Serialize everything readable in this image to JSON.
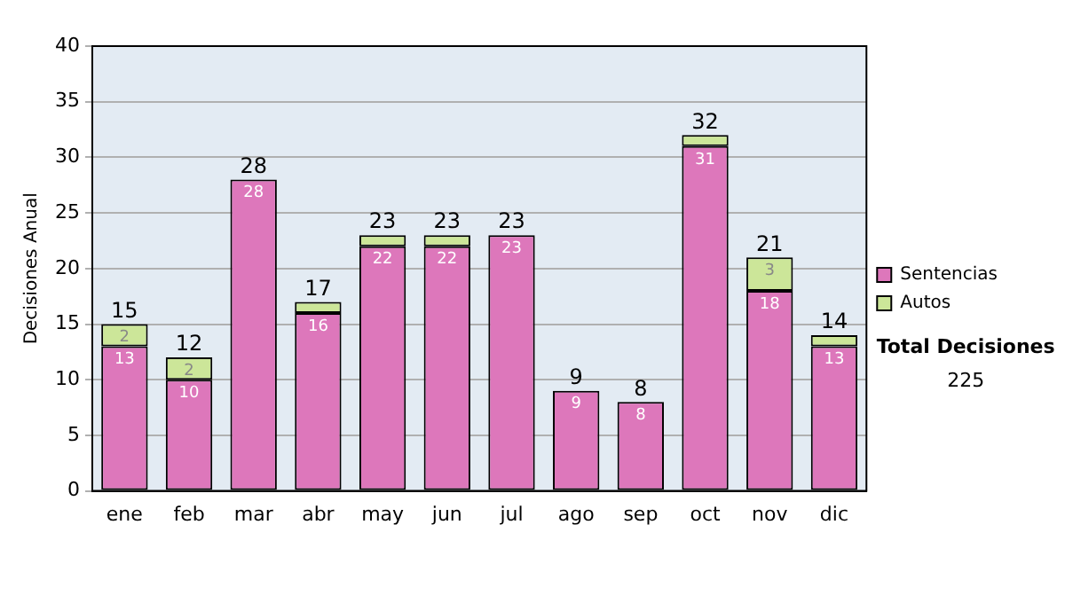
{
  "chart_data": {
    "type": "bar",
    "stacked": true,
    "ylabel": "Decisiones Anual",
    "categories": [
      "ene",
      "feb",
      "mar",
      "abr",
      "may",
      "jun",
      "jul",
      "ago",
      "sep",
      "oct",
      "nov",
      "dic"
    ],
    "series": [
      {
        "name": "Sentencias",
        "color": "#dd77bb",
        "values": [
          13,
          10,
          28,
          16,
          22,
          22,
          23,
          9,
          8,
          31,
          18,
          13
        ],
        "value_labels": [
          "13",
          "10",
          "28",
          "16",
          "22",
          "22",
          "23",
          "9",
          "8",
          "31",
          "18",
          "13"
        ]
      },
      {
        "name": "Autos",
        "color": "#cce699",
        "values": [
          2,
          2,
          0,
          1,
          1,
          1,
          0,
          0,
          0,
          1,
          3,
          1
        ],
        "value_labels": [
          "2",
          "2",
          null,
          null,
          null,
          null,
          null,
          null,
          null,
          null,
          "3",
          null
        ]
      }
    ],
    "totals": [
      "15",
      "12",
      "28",
      "17",
      "23",
      "23",
      "23",
      "9",
      "8",
      "32",
      "21",
      "14"
    ],
    "ylim": [
      0,
      40
    ],
    "yticks": [
      0,
      5,
      10,
      15,
      20,
      25,
      30,
      35,
      40
    ],
    "grid": "y",
    "legend": "right",
    "annotations": [
      "Total Decisiones",
      "225"
    ]
  }
}
